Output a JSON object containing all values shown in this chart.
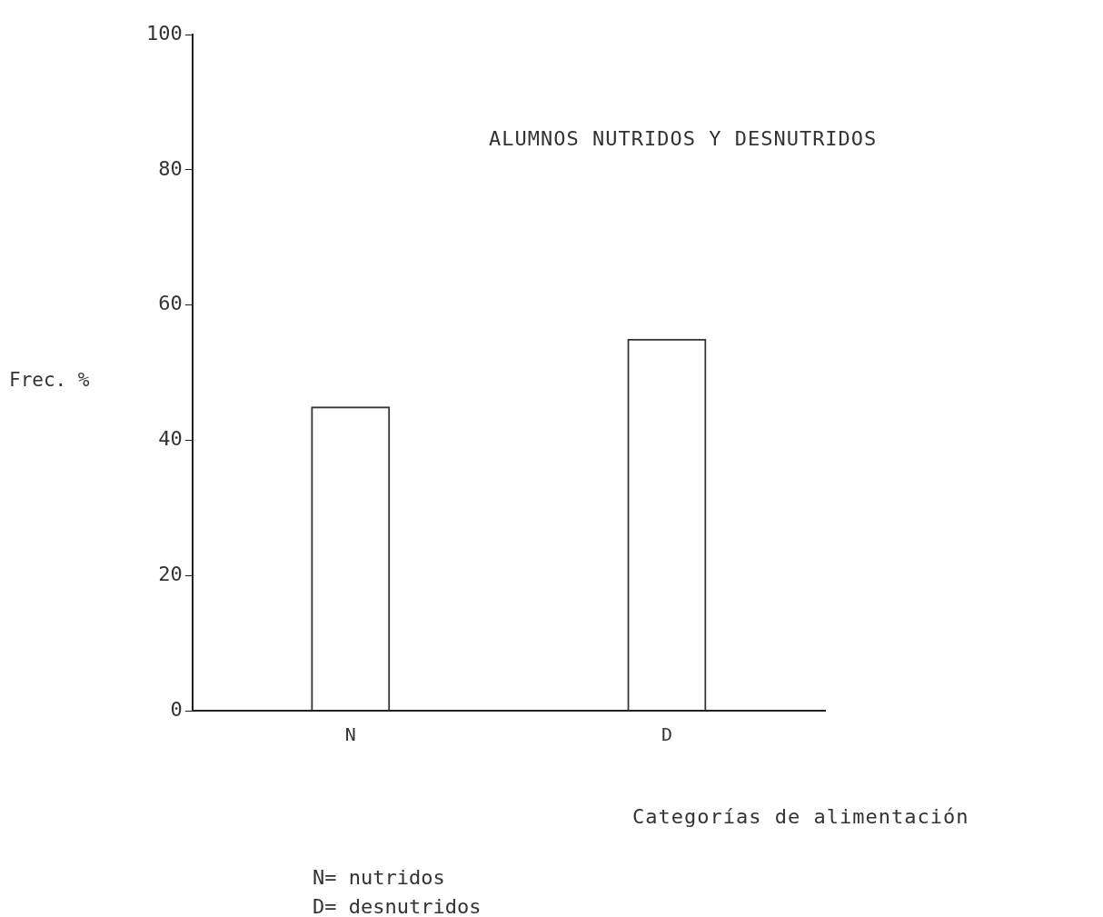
{
  "chart_data": {
    "type": "bar",
    "title": "ALUMNOS NUTRIDOS Y DESNUTRIDOS",
    "xlabel": "Categorías de alimentación",
    "ylabel": "Frec. %",
    "categories": [
      "N",
      "D"
    ],
    "values": [
      45,
      55
    ],
    "color": "#333333",
    "ylim": [
      0,
      100
    ],
    "yticks": [
      0,
      20,
      40,
      60,
      80,
      100
    ],
    "grid": false,
    "legend": false,
    "annotations": [
      "N= nutridos",
      "D= desnutridos"
    ]
  }
}
